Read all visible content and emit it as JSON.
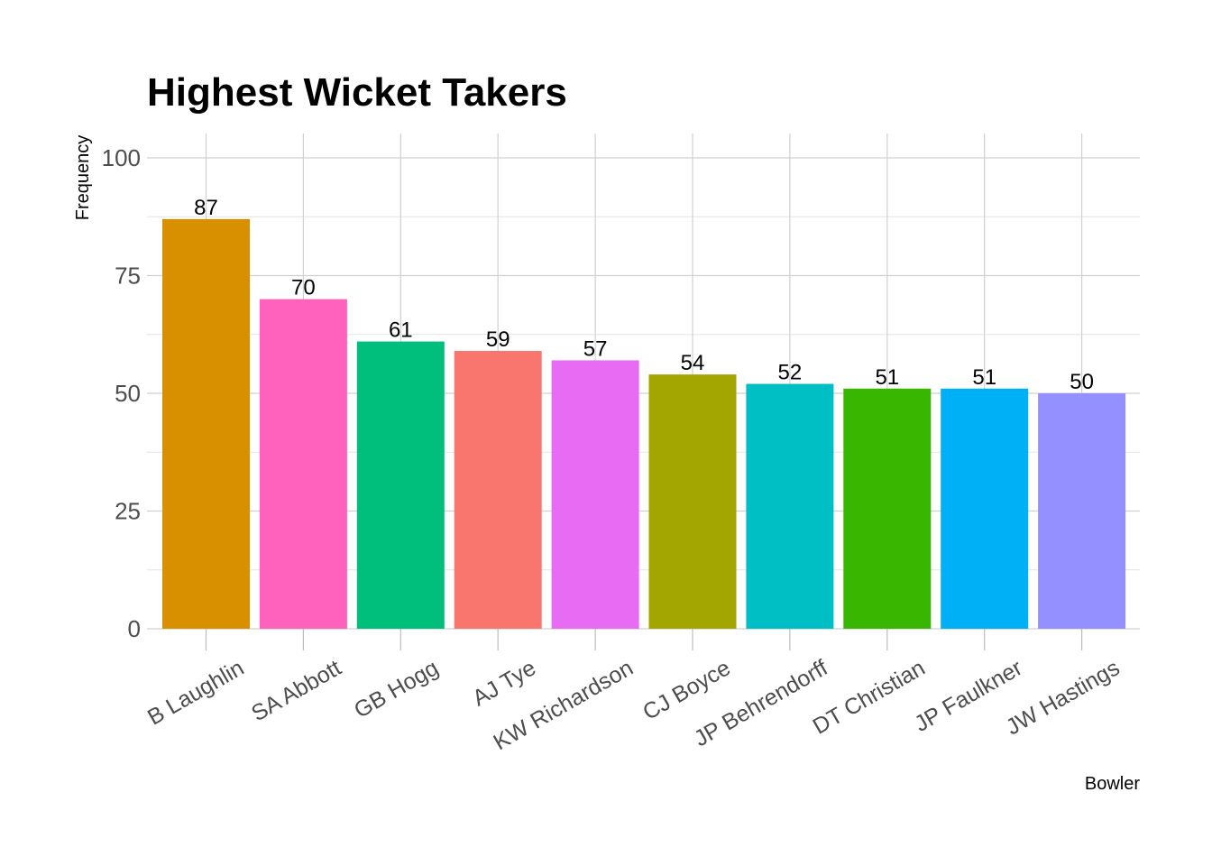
{
  "chart_data": {
    "type": "bar",
    "title": "Highest Wicket Takers",
    "xlabel": "Bowler",
    "ylabel": "Frequency",
    "categories": [
      "B Laughlin",
      "SA Abbott",
      "GB Hogg",
      "AJ Tye",
      "KW Richardson",
      "CJ Boyce",
      "JP Behrendorff",
      "DT Christian",
      "JP Faulkner",
      "JW Hastings"
    ],
    "values": [
      87,
      70,
      61,
      59,
      57,
      54,
      52,
      51,
      51,
      50
    ],
    "data_labels": [
      "87",
      "70",
      "61",
      "59",
      "57",
      "54",
      "52",
      "51",
      "51",
      "50"
    ],
    "colors": [
      "#D89000",
      "#FF62BC",
      "#00BF7D",
      "#F8766D",
      "#E76BF3",
      "#A3A500",
      "#00BFC4",
      "#39B600",
      "#00B0F6",
      "#9590FF"
    ],
    "ylim": [
      0,
      100
    ],
    "y_ticks": [
      0,
      25,
      50,
      75,
      100
    ],
    "y_tick_labels": [
      "0",
      "25",
      "50",
      "75",
      "100"
    ],
    "grid": true,
    "legend": "none"
  }
}
